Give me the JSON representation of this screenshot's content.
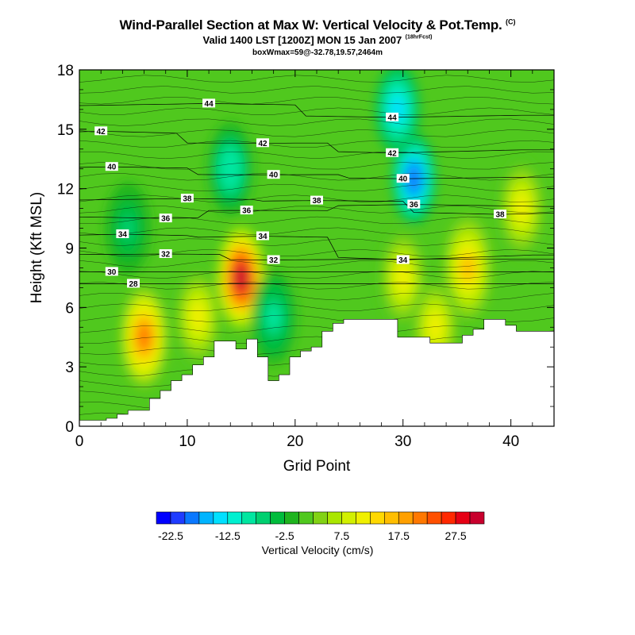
{
  "title": "Wind-Parallel Section at Max W: Vertical Velocity & Pot.Temp.",
  "title_mark": "(C)",
  "subtitle": "Valid 1400 LST [1200Z] MON 15 Jan 2007",
  "subtitle_note": "(18hrFcst)",
  "caption": "boxWmax=59@-32.78,19.57,2464m",
  "chart_data": {
    "type": "heatmap",
    "xlabel": "Grid Point",
    "ylabel": "Height (Kft MSL)",
    "xlim": [
      0,
      44
    ],
    "ylim": [
      0,
      18
    ],
    "x_ticks": [
      0,
      10,
      20,
      30,
      40
    ],
    "y_ticks": [
      0,
      3,
      6,
      9,
      12,
      15,
      18
    ],
    "colorbar": {
      "label": "Vertical Velocity (cm/s)",
      "tick_labels": [
        "-22.5",
        "-12.5",
        "-2.5",
        "7.5",
        "17.5",
        "27.5"
      ],
      "tick_values": [
        -22.5,
        -12.5,
        -2.5,
        7.5,
        17.5,
        27.5
      ],
      "levels": [
        -25,
        -22.5,
        -20,
        -17.5,
        -15,
        -12.5,
        -10,
        -7.5,
        -5,
        -2.5,
        0,
        2.5,
        5,
        7.5,
        10,
        12.5,
        15,
        17.5,
        20,
        22.5,
        25,
        27.5,
        30,
        32.5
      ],
      "colors": [
        "#0000ff",
        "#1f3cff",
        "#0a78ff",
        "#00b4ff",
        "#00e0ff",
        "#00f0d0",
        "#00e6a0",
        "#00d070",
        "#00bc3c",
        "#1eb41e",
        "#50c81e",
        "#82d214",
        "#aae600",
        "#d2f000",
        "#f0f000",
        "#ffd800",
        "#ffbe00",
        "#ffa000",
        "#ff7800",
        "#ff5000",
        "#ff2800",
        "#e60014",
        "#c8002d"
      ]
    },
    "field_features": [
      {
        "kind": "updraft",
        "x": 6,
        "y": 4.5,
        "peak_cm_s": 20
      },
      {
        "kind": "updraft",
        "x": 15,
        "y": 7.5,
        "peak_cm_s": 30
      },
      {
        "kind": "updraft",
        "x": 11,
        "y": 5.5,
        "peak_cm_s": 10
      },
      {
        "kind": "updraft",
        "x": 30,
        "y": 7.5,
        "peak_cm_s": 12
      },
      {
        "kind": "updraft",
        "x": 36,
        "y": 8,
        "peak_cm_s": 15
      },
      {
        "kind": "updraft",
        "x": 41,
        "y": 11,
        "peak_cm_s": 10
      },
      {
        "kind": "updraft",
        "x": 33,
        "y": 5,
        "peak_cm_s": 10
      },
      {
        "kind": "downdraft",
        "x": 31,
        "y": 12.5,
        "peak_cm_s": -20
      },
      {
        "kind": "downdraft",
        "x": 29.5,
        "y": 16,
        "peak_cm_s": -15
      },
      {
        "kind": "downdraft",
        "x": 14,
        "y": 13,
        "peak_cm_s": -10
      },
      {
        "kind": "downdraft",
        "x": 18,
        "y": 5.5,
        "peak_cm_s": -8
      },
      {
        "kind": "downdraft",
        "x": 4.5,
        "y": 10,
        "peak_cm_s": -6
      }
    ],
    "terrain_top_kft": [
      0.3,
      0.3,
      0.3,
      0.4,
      0.6,
      0.8,
      0.8,
      1.4,
      1.8,
      2.3,
      2.6,
      3.1,
      3.5,
      4.3,
      4.3,
      3.9,
      4.4,
      3.5,
      2.3,
      2.6,
      3.5,
      3.8,
      4.0,
      4.8,
      5.2,
      5.4,
      5.4,
      5.4,
      5.4,
      5.4,
      4.5,
      4.5,
      4.5,
      4.2,
      4.2,
      4.2,
      4.6,
      4.9,
      5.4,
      5.4,
      5.1,
      4.8,
      4.8,
      4.8,
      4.8
    ],
    "theta_contour_labels": [
      {
        "text": "44",
        "x": 12,
        "y": 16.3
      },
      {
        "text": "44",
        "x": 29,
        "y": 15.6
      },
      {
        "text": "42",
        "x": 2,
        "y": 14.9
      },
      {
        "text": "42",
        "x": 17,
        "y": 14.3
      },
      {
        "text": "42",
        "x": 29,
        "y": 13.8
      },
      {
        "text": "40",
        "x": 3,
        "y": 13.1
      },
      {
        "text": "40",
        "x": 18,
        "y": 12.7
      },
      {
        "text": "40",
        "x": 30,
        "y": 12.5
      },
      {
        "text": "38",
        "x": 10,
        "y": 11.5
      },
      {
        "text": "38",
        "x": 22,
        "y": 11.4
      },
      {
        "text": "38",
        "x": 39,
        "y": 10.7
      },
      {
        "text": "36",
        "x": 8,
        "y": 10.5
      },
      {
        "text": "36",
        "x": 15.5,
        "y": 10.9
      },
      {
        "text": "36",
        "x": 31,
        "y": 11.2
      },
      {
        "text": "34",
        "x": 4,
        "y": 9.7
      },
      {
        "text": "34",
        "x": 17,
        "y": 9.6
      },
      {
        "text": "34",
        "x": 30,
        "y": 8.4
      },
      {
        "text": "32",
        "x": 8,
        "y": 8.7
      },
      {
        "text": "32",
        "x": 18,
        "y": 8.4
      },
      {
        "text": "30",
        "x": 3,
        "y": 7.8
      },
      {
        "text": "28",
        "x": 5,
        "y": 7.2
      }
    ]
  }
}
